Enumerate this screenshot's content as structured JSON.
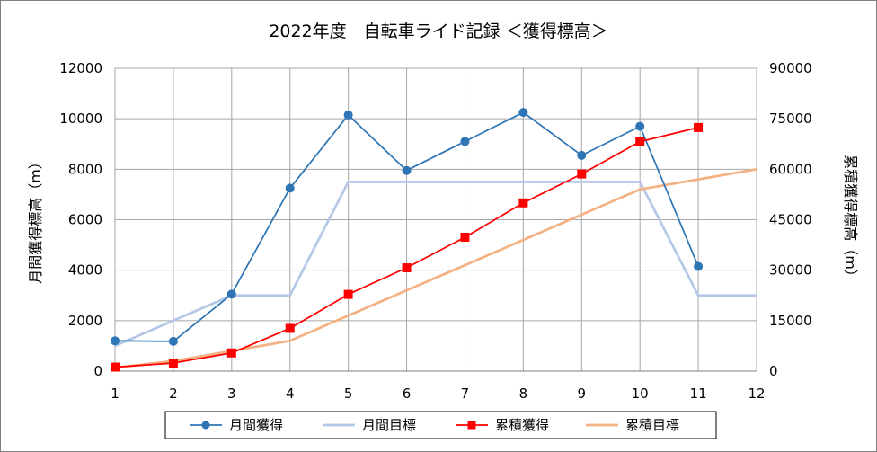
{
  "chart_data": {
    "type": "line",
    "title": "2022年度　自転車ライド記録 ＜獲得標高＞",
    "x": [
      1,
      2,
      3,
      4,
      5,
      6,
      7,
      8,
      9,
      10,
      11,
      12
    ],
    "xlim": [
      1,
      12
    ],
    "ylabel": "月間獲得標高（m）",
    "ylim": [
      0,
      12000
    ],
    "y_ticks": [
      0,
      2000,
      4000,
      6000,
      8000,
      10000,
      12000
    ],
    "y2label": "累積獲得標高（m）",
    "y2lim": [
      0,
      90000
    ],
    "y2_ticks": [
      0,
      15000,
      30000,
      45000,
      60000,
      75000,
      90000
    ],
    "grid": true,
    "legend": "bottom",
    "series": [
      {
        "name": "月間獲得",
        "axis": "left",
        "color": "#2e75b6",
        "marker": "circle",
        "values": [
          1200,
          1180,
          3050,
          7250,
          10150,
          7950,
          9100,
          10250,
          8550,
          9700,
          4150,
          null
        ]
      },
      {
        "name": "月間目標",
        "axis": "left",
        "color": "#b4c7e7",
        "marker": "none",
        "values": [
          1000,
          2000,
          3000,
          3000,
          7500,
          7500,
          7500,
          7500,
          7500,
          7500,
          3000,
          3000
        ]
      },
      {
        "name": "累積獲得",
        "axis": "right",
        "color": "#ff0000",
        "marker": "square",
        "values": [
          1200,
          2400,
          5400,
          12700,
          22800,
          30700,
          39800,
          50000,
          58600,
          68200,
          72400,
          null
        ]
      },
      {
        "name": "累積目標",
        "axis": "right",
        "color": "#f4b183",
        "marker": "none",
        "values": [
          1000,
          3000,
          6000,
          9000,
          16500,
          24000,
          31500,
          39000,
          46500,
          54000,
          57000,
          60000
        ]
      }
    ]
  }
}
